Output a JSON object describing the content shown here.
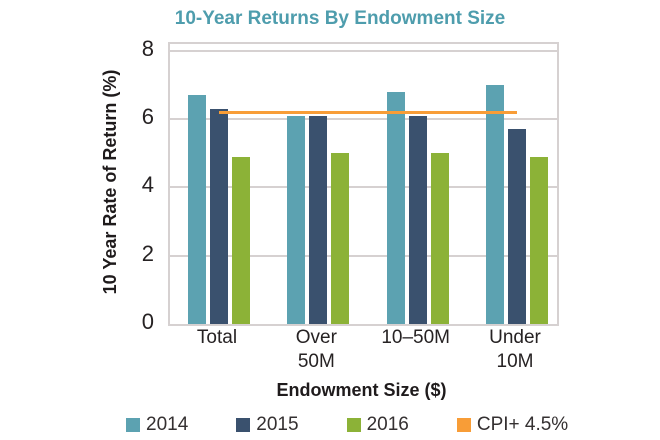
{
  "chart_data": {
    "type": "bar",
    "title": "10-Year Returns By Endowment Size",
    "xlabel": "Endowment Size ($)",
    "ylabel": "10 Year Rate of Return (%)",
    "categories": [
      "Total",
      "Over\n50M",
      "10–50M",
      "Under\n10M"
    ],
    "series": [
      {
        "name": "2014",
        "color": "#5CA2B1",
        "values": [
          6.7,
          6.1,
          6.8,
          7.0
        ]
      },
      {
        "name": "2015",
        "color": "#3A516E",
        "values": [
          6.3,
          6.1,
          6.1,
          5.7
        ]
      },
      {
        "name": "2016",
        "color": "#8CB237",
        "values": [
          4.9,
          5.0,
          5.0,
          4.9
        ]
      }
    ],
    "reference_line": {
      "name": "CPI+ 4.5%",
      "color": "#F89D37",
      "value": 6.2
    },
    "yticks": [
      0,
      2,
      4,
      6,
      8
    ],
    "ylim": [
      0,
      8.2
    ],
    "grid": true,
    "legend_position": "bottom"
  },
  "colors": {
    "title_text": "#4E9DAD",
    "axis_title_text": "#1F1B1C",
    "tick_text": "#262223",
    "legend_text": "#343031",
    "gridline": "#D6D1D1",
    "plot_border": "#D6D1D1",
    "background": "#FFFFFF"
  }
}
